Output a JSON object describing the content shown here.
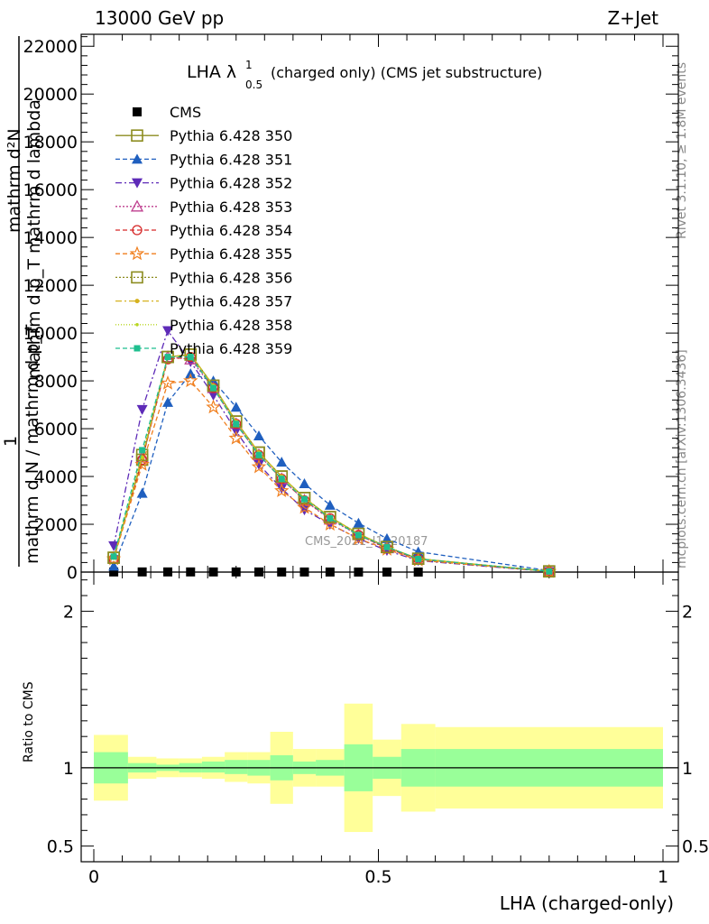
{
  "header": {
    "left": "13000 GeV pp",
    "right": "Z+Jet"
  },
  "title": {
    "main": "LHA λ",
    "sup": "1",
    "sub": "0.5",
    "rest": "(charged only) (CMS jet substructure)"
  },
  "side_labels": {
    "rivet": "Rivet 3.1.10, ≥ 1.8M events",
    "mcplots": "mcplots.cern.ch [arXiv:1306.3436]",
    "watermark": "CMS_2021_I1920187"
  },
  "chart_data": [
    {
      "type": "line",
      "xlim": [
        -0.01,
        1.0
      ],
      "ylim": [
        0,
        22500
      ],
      "yticks": [
        0,
        2000,
        4000,
        6000,
        8000,
        10000,
        12000,
        14000,
        16000,
        18000,
        20000,
        22000
      ],
      "ytick_labels": [
        "0",
        "2000",
        "4000",
        "6000",
        "8000",
        "10000",
        "12000",
        "14000",
        "16000",
        "18000",
        "20000",
        "22000"
      ],
      "ylabel": {
        "line1": "mathrm d²N",
        "line2": "mathrm d p_T mathrm d lambda",
        "line3": "1",
        "line4": "mathrm d N / mathrm d p_T"
      },
      "legend_position": "top-left",
      "x": [
        0.035,
        0.085,
        0.13,
        0.17,
        0.21,
        0.25,
        0.29,
        0.33,
        0.37,
        0.415,
        0.465,
        0.515,
        0.57,
        0.8
      ],
      "series": [
        {
          "name": "CMS",
          "color": "#000000",
          "marker": "square-filled",
          "dash": "",
          "values": [
            6,
            7,
            7,
            7,
            6,
            6,
            5,
            4,
            4,
            3,
            2,
            2,
            1,
            0
          ]
        },
        {
          "name": "Pythia 6.428 350",
          "color": "#8c8c1f",
          "marker": "square-open",
          "dash": "",
          "values": [
            600,
            4700,
            9000,
            9100,
            7800,
            6300,
            5000,
            4000,
            3100,
            2300,
            1600,
            1050,
            560,
            30
          ]
        },
        {
          "name": "Pythia 6.428 351",
          "color": "#1f5fbf",
          "marker": "triangle-up-filled",
          "dash": "5,3",
          "values": [
            250,
            3300,
            7100,
            8300,
            8000,
            6900,
            5700,
            4600,
            3700,
            2800,
            2050,
            1400,
            850,
            60
          ]
        },
        {
          "name": "Pythia 6.428 352",
          "color": "#5e2bb8",
          "marker": "triangle-down-filled",
          "dash": "7,3,2,3",
          "values": [
            1100,
            6800,
            10100,
            8800,
            7400,
            5900,
            4500,
            3500,
            2600,
            2000,
            1400,
            900,
            480,
            20
          ]
        },
        {
          "name": "Pythia 6.428 353",
          "color": "#bf3f8f",
          "marker": "triangle-up-open",
          "dash": "2,2",
          "values": [
            600,
            4800,
            9000,
            8900,
            7700,
            6200,
            4900,
            3900,
            3000,
            2200,
            1550,
            1000,
            540,
            25
          ]
        },
        {
          "name": "Pythia 6.428 354",
          "color": "#d62828",
          "marker": "circle-open",
          "dash": "5,3",
          "values": [
            550,
            4700,
            8900,
            9000,
            7700,
            6200,
            4900,
            3900,
            3000,
            2250,
            1550,
            1000,
            540,
            25
          ]
        },
        {
          "name": "Pythia 6.428 355",
          "color": "#f07f1f",
          "marker": "star-open",
          "dash": "5,3",
          "values": [
            550,
            4500,
            7900,
            8000,
            6900,
            5600,
            4400,
            3400,
            2700,
            2000,
            1400,
            950,
            500,
            25
          ]
        },
        {
          "name": "Pythia 6.428 356",
          "color": "#8c8c1f",
          "marker": "square-open",
          "dash": "2,2",
          "values": [
            600,
            4900,
            9000,
            9100,
            7800,
            6300,
            5000,
            4000,
            3100,
            2300,
            1600,
            1050,
            560,
            30
          ]
        },
        {
          "name": "Pythia 6.428 357",
          "color": "#d6b21f",
          "marker": "dot",
          "dash": "7,3,2,3",
          "values": [
            600,
            4800,
            9000,
            9100,
            7800,
            6300,
            5000,
            4000,
            3100,
            2300,
            1600,
            1050,
            560,
            30
          ]
        },
        {
          "name": "Pythia 6.428 358",
          "color": "#b8d61f",
          "marker": "dot-small",
          "dash": "1,2",
          "values": [
            600,
            4800,
            9000,
            9100,
            7800,
            6300,
            5000,
            4000,
            3100,
            2300,
            1600,
            1050,
            560,
            30
          ]
        },
        {
          "name": "Pythia 6.428 359",
          "color": "#1fbf8f",
          "marker": "square-filled-small",
          "dash": "5,3",
          "values": [
            650,
            5100,
            9000,
            9000,
            7700,
            6200,
            4900,
            3900,
            3050,
            2250,
            1550,
            1050,
            550,
            30
          ]
        }
      ]
    },
    {
      "type": "area",
      "xlim": [
        -0.01,
        1.0
      ],
      "ylim": [
        0.4,
        2.25
      ],
      "yticks": [
        0.5,
        1,
        2
      ],
      "ytick_labels": [
        "0.5",
        "1",
        "2"
      ],
      "xticks": [
        0,
        0.5,
        1
      ],
      "xtick_labels": [
        "0",
        "0.5",
        "1"
      ],
      "ylabel": "Ratio to CMS",
      "xlabel": "LHA (charged-only)",
      "bins": [
        {
          "x0": 0.0,
          "x1": 0.06,
          "stat_lo": 0.9,
          "stat_hi": 1.1,
          "tot_lo": 0.79,
          "tot_hi": 1.21
        },
        {
          "x0": 0.06,
          "x1": 0.11,
          "stat_lo": 0.97,
          "stat_hi": 1.03,
          "tot_lo": 0.93,
          "tot_hi": 1.07
        },
        {
          "x0": 0.11,
          "x1": 0.15,
          "stat_lo": 0.98,
          "stat_hi": 1.02,
          "tot_lo": 0.94,
          "tot_hi": 1.06
        },
        {
          "x0": 0.15,
          "x1": 0.19,
          "stat_lo": 0.97,
          "stat_hi": 1.03,
          "tot_lo": 0.94,
          "tot_hi": 1.06
        },
        {
          "x0": 0.19,
          "x1": 0.23,
          "stat_lo": 0.97,
          "stat_hi": 1.04,
          "tot_lo": 0.93,
          "tot_hi": 1.07
        },
        {
          "x0": 0.23,
          "x1": 0.27,
          "stat_lo": 0.96,
          "stat_hi": 1.05,
          "tot_lo": 0.91,
          "tot_hi": 1.1
        },
        {
          "x0": 0.27,
          "x1": 0.31,
          "stat_lo": 0.95,
          "stat_hi": 1.05,
          "tot_lo": 0.9,
          "tot_hi": 1.1
        },
        {
          "x0": 0.31,
          "x1": 0.35,
          "stat_lo": 0.92,
          "stat_hi": 1.08,
          "tot_lo": 0.77,
          "tot_hi": 1.23
        },
        {
          "x0": 0.35,
          "x1": 0.39,
          "stat_lo": 0.96,
          "stat_hi": 1.04,
          "tot_lo": 0.88,
          "tot_hi": 1.12
        },
        {
          "x0": 0.39,
          "x1": 0.44,
          "stat_lo": 0.95,
          "stat_hi": 1.05,
          "tot_lo": 0.88,
          "tot_hi": 1.12
        },
        {
          "x0": 0.44,
          "x1": 0.49,
          "stat_lo": 0.85,
          "stat_hi": 1.15,
          "tot_lo": 0.59,
          "tot_hi": 1.41
        },
        {
          "x0": 0.49,
          "x1": 0.54,
          "stat_lo": 0.93,
          "stat_hi": 1.07,
          "tot_lo": 0.82,
          "tot_hi": 1.18
        },
        {
          "x0": 0.54,
          "x1": 0.6,
          "stat_lo": 0.88,
          "stat_hi": 1.12,
          "tot_lo": 0.72,
          "tot_hi": 1.28
        },
        {
          "x0": 0.6,
          "x1": 1.0,
          "stat_lo": 0.88,
          "stat_hi": 1.12,
          "tot_lo": 0.74,
          "tot_hi": 1.26
        }
      ],
      "colors": {
        "stat": "#99ff99",
        "tot": "#ffff99",
        "ref_line": "#000000"
      }
    }
  ]
}
